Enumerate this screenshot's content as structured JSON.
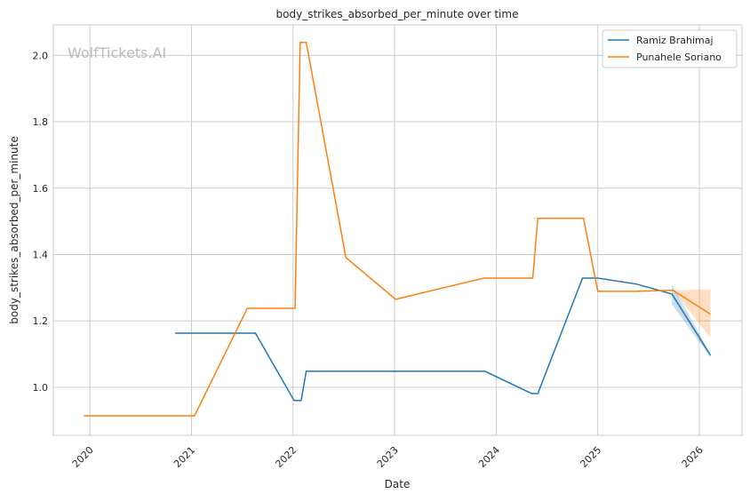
{
  "chart_data": {
    "type": "line",
    "title": "body_strikes_absorbed_per_minute over time",
    "xlabel": "Date",
    "ylabel": "body_strikes_absorbed_per_minute",
    "xlim": [
      2019.64,
      2026.42
    ],
    "ylim": [
      0.855,
      2.092
    ],
    "xticks": [
      "2020",
      "2021",
      "2022",
      "2023",
      "2024",
      "2025",
      "2026"
    ],
    "yticks": [
      "1.0",
      "1.2",
      "1.4",
      "1.6",
      "1.8",
      "2.0"
    ],
    "grid": true,
    "legend_position": "top-right",
    "watermark": "WolfTickets.AI",
    "series": [
      {
        "name": "Ramiz Brahimaj",
        "color": "#1f77b4",
        "x": [
          2020.84,
          2021.63,
          2022.01,
          2022.08,
          2022.13,
          2023.89,
          2024.35,
          2024.41,
          2024.85,
          2025.0,
          2025.38,
          2025.73,
          2026.11
        ],
        "y": [
          1.163,
          1.163,
          0.96,
          0.96,
          1.048,
          1.048,
          0.981,
          0.981,
          1.329,
          1.329,
          1.311,
          1.281,
          1.096
        ],
        "band": {
          "x": [
            2025.73,
            2026.11
          ],
          "lo": [
            1.25,
            1.09
          ],
          "hi": [
            1.31,
            1.1
          ]
        }
      },
      {
        "name": "Punahele Soriano",
        "color": "#ff7f0e",
        "x": [
          2019.94,
          2021.03,
          2021.55,
          2022.02,
          2022.07,
          2022.13,
          2022.52,
          2023.01,
          2023.88,
          2024.36,
          2024.41,
          2024.86,
          2025.0,
          2025.37,
          2025.74,
          2026.11
        ],
        "y": [
          0.914,
          0.914,
          1.238,
          1.238,
          2.039,
          2.039,
          1.391,
          1.265,
          1.329,
          1.329,
          1.509,
          1.509,
          1.289,
          1.289,
          1.292,
          1.22
        ],
        "band": {
          "x": [
            2025.74,
            2026.11
          ],
          "lo": [
            1.292,
            1.15
          ],
          "hi": [
            1.292,
            1.295
          ]
        }
      }
    ]
  }
}
